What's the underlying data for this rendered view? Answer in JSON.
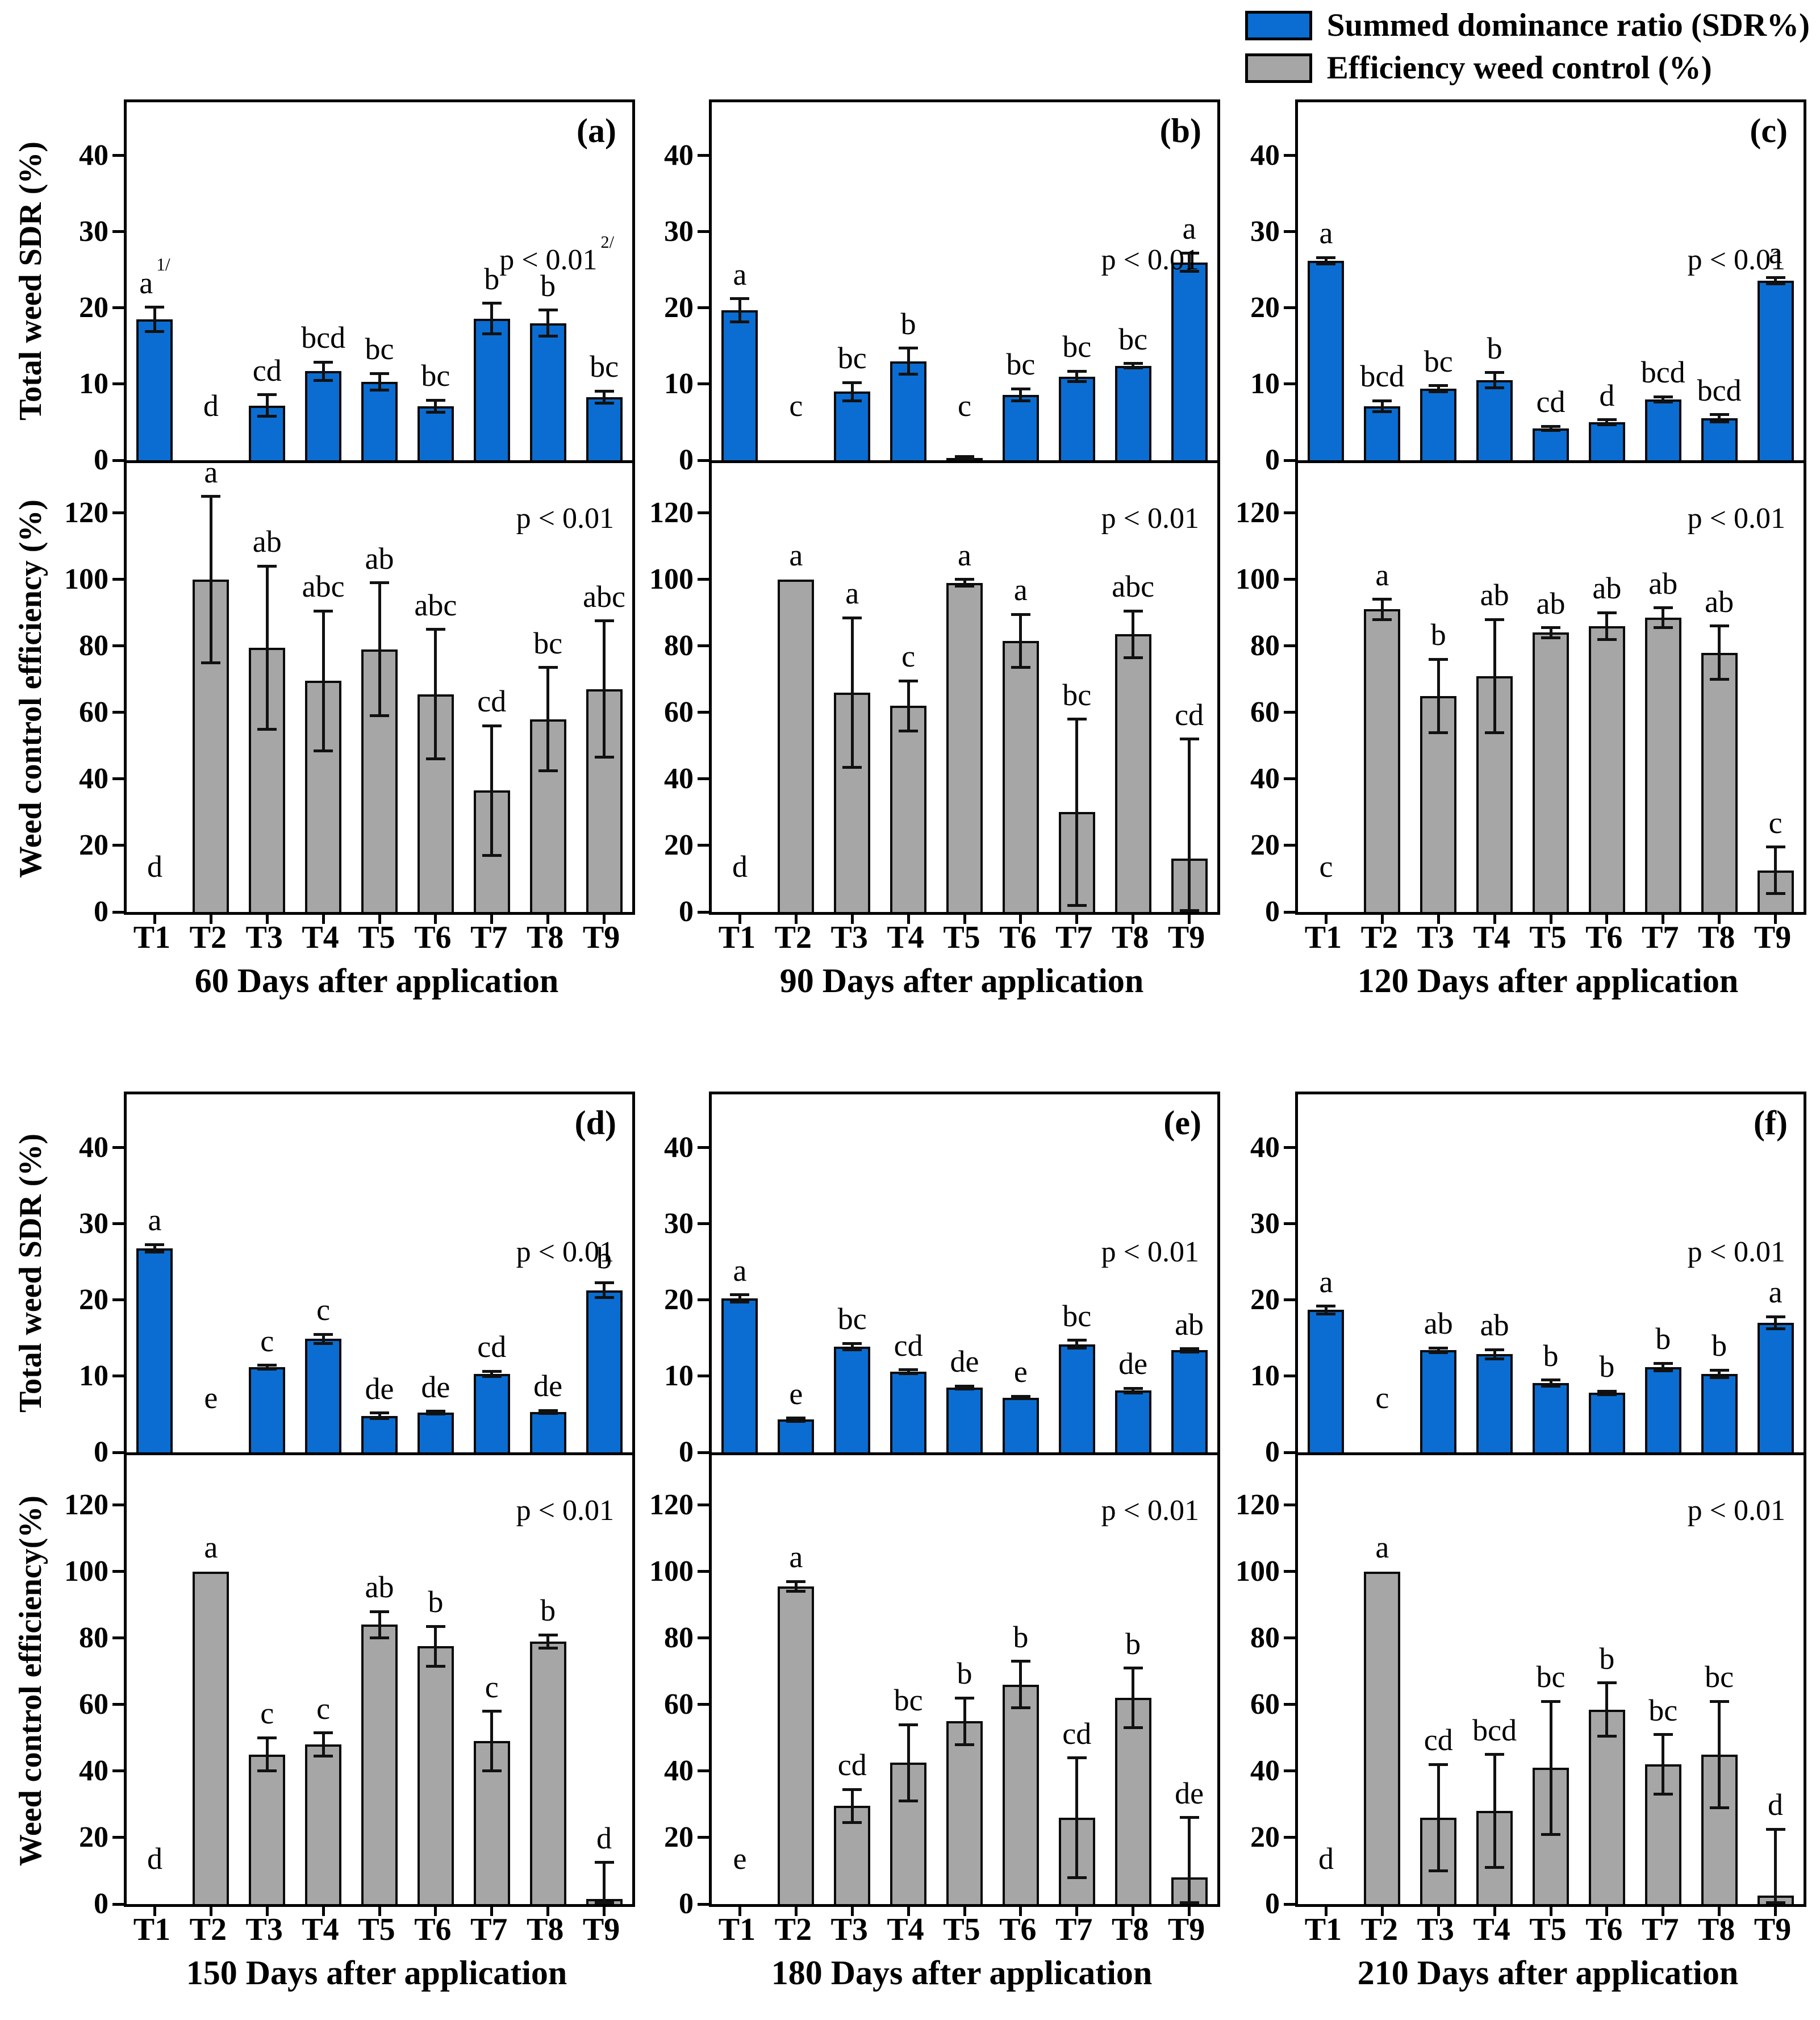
{
  "chart_data": {
    "type": "bar",
    "categories": [
      "T1",
      "T2",
      "T3",
      "T4",
      "T5",
      "T6",
      "T7",
      "T8",
      "T9"
    ],
    "legend": [
      {
        "label": "Summed dominance ratio (SDR%)",
        "color": "#0b6dd1"
      },
      {
        "label": "Efficiency weed control (%)",
        "color": "#a6a6a6"
      }
    ],
    "top_axis": {
      "ticks": [
        0,
        10,
        20,
        30,
        40
      ],
      "max": 47
    },
    "bottom_axis": {
      "ticks": [
        0,
        20,
        40,
        60,
        80,
        100,
        120
      ],
      "max": 135
    },
    "panels": [
      {
        "id": "a",
        "panel_label": "(a)",
        "x_title": "60 Days after application",
        "sdr": {
          "ylabel": "Total weed SDR (%)",
          "p": "p < 0.01",
          "p_sup": "2/",
          "values": [
            18.5,
            0,
            7.2,
            11.7,
            10.3,
            7.1,
            18.6,
            18.0,
            8.3
          ],
          "errors": [
            1.6,
            0,
            1.4,
            1.2,
            1.1,
            0.8,
            2.0,
            1.7,
            0.8
          ],
          "letters": [
            "a",
            "d",
            "cd",
            "bcd",
            "bc",
            "bc",
            "b",
            "b",
            "bc"
          ],
          "letter_sups": [
            "1/",
            "",
            "",
            "",
            "",
            "",
            "",
            "",
            ""
          ]
        },
        "wce": {
          "ylabel": "Weed control efficiency (%)",
          "p": "p < 0.01",
          "values": [
            0,
            100,
            79.5,
            69.5,
            79,
            65.5,
            36.5,
            58,
            67
          ],
          "errors": [
            0,
            25,
            24.5,
            21,
            20,
            19.5,
            19.5,
            15.5,
            20.5
          ],
          "letters": [
            "d",
            "a",
            "ab",
            "abc",
            "ab",
            "abc",
            "cd",
            "bc",
            "abc"
          ]
        }
      },
      {
        "id": "b",
        "panel_label": "(b)",
        "x_title": "90 Days after application",
        "sdr": {
          "ylabel": null,
          "p": "p < 0.01",
          "values": [
            19.7,
            0,
            9.0,
            13.0,
            0.3,
            8.6,
            11.0,
            12.4,
            26.0
          ],
          "errors": [
            1.5,
            0,
            1.2,
            1.7,
            0.2,
            0.8,
            0.7,
            0.3,
            1.2
          ],
          "letters": [
            "a",
            "c",
            "bc",
            "b",
            "c",
            "bc",
            "bc",
            "bc",
            "a"
          ]
        },
        "wce": {
          "ylabel": null,
          "p": "p < 0.01",
          "values": [
            0,
            100,
            66,
            62,
            99,
            81.5,
            30,
            83.5,
            16
          ],
          "errors": [
            0,
            0,
            22.5,
            7.5,
            1,
            8,
            28,
            7,
            36
          ],
          "letters": [
            "d",
            "a",
            "a",
            "c",
            "a",
            "a",
            "bc",
            "abc",
            "cd"
          ]
        }
      },
      {
        "id": "c",
        "panel_label": "(c)",
        "x_title": "120 Days after application",
        "sdr": {
          "ylabel": null,
          "p": "p < 0.01",
          "values": [
            26.2,
            7.1,
            9.4,
            10.5,
            4.2,
            5.0,
            8.0,
            5.5,
            23.6
          ],
          "errors": [
            0.4,
            0.7,
            0.4,
            1.0,
            0.25,
            0.3,
            0.35,
            0.5,
            0.4
          ],
          "letters": [
            "a",
            "bcd",
            "bc",
            "b",
            "cd",
            "d",
            "bcd",
            "bcd",
            "a"
          ]
        },
        "wce": {
          "ylabel": null,
          "p": "p < 0.01",
          "values": [
            0,
            91,
            65,
            71,
            84,
            86,
            88.5,
            78,
            12.5
          ],
          "errors": [
            0,
            3,
            11,
            17,
            1.5,
            4,
            3,
            8,
            7
          ],
          "letters": [
            "c",
            "a",
            "b",
            "ab",
            "ab",
            "ab",
            "ab",
            "ab",
            "c"
          ]
        }
      },
      {
        "id": "d",
        "panel_label": "(d)",
        "x_title": "150 Days after application",
        "sdr": {
          "ylabel": "Total weed SDR (%)",
          "p": "p < 0.01",
          "values": [
            26.8,
            0,
            11.2,
            14.9,
            4.8,
            5.2,
            10.3,
            5.3,
            21.3
          ],
          "errors": [
            0.5,
            0,
            0.25,
            0.6,
            0.35,
            0.2,
            0.35,
            0.2,
            1.0
          ],
          "letters": [
            "a",
            "e",
            "c",
            "c",
            "de",
            "de",
            "cd",
            "de",
            "b"
          ]
        },
        "wce": {
          "ylabel": "Weed control efficiency(%)",
          "p": "p < 0.01",
          "values": [
            0,
            100,
            45,
            48,
            84,
            77.5,
            49,
            79,
            1.5
          ],
          "errors": [
            0,
            0,
            5,
            3.5,
            4,
            6,
            9,
            2,
            11
          ],
          "letters": [
            "d",
            "a",
            "c",
            "c",
            "ab",
            "b",
            "c",
            "b",
            "d"
          ]
        }
      },
      {
        "id": "e",
        "panel_label": "(e)",
        "x_title": "180 Days after application",
        "sdr": {
          "ylabel": null,
          "p": "p < 0.01",
          "values": [
            20.2,
            4.3,
            13.9,
            10.6,
            8.5,
            7.2,
            14.2,
            8.1,
            13.4
          ],
          "errors": [
            0.5,
            0.2,
            0.4,
            0.25,
            0.2,
            0.15,
            0.5,
            0.3,
            0.2
          ],
          "letters": [
            "a",
            "e",
            "bc",
            "cd",
            "de",
            "e",
            "bc",
            "de",
            "ab"
          ]
        },
        "wce": {
          "ylabel": null,
          "p": "p < 0.01",
          "values": [
            0,
            95.5,
            29.5,
            42.5,
            55,
            66,
            26,
            62,
            8
          ],
          "errors": [
            0,
            1.5,
            5,
            11.5,
            7,
            7,
            18,
            9,
            18
          ],
          "letters": [
            "e",
            "a",
            "cd",
            "bc",
            "b",
            "b",
            "cd",
            "b",
            "de"
          ]
        }
      },
      {
        "id": "f",
        "panel_label": "(f)",
        "x_title": "210 Days after application",
        "sdr": {
          "ylabel": null,
          "p": "p < 0.01",
          "values": [
            18.7,
            0,
            13.4,
            12.9,
            9.1,
            7.8,
            11.2,
            10.3,
            17.0
          ],
          "errors": [
            0.5,
            0,
            0.3,
            0.6,
            0.4,
            0.25,
            0.5,
            0.5,
            0.8
          ],
          "letters": [
            "a",
            "c",
            "ab",
            "ab",
            "b",
            "b",
            "b",
            "b",
            "a"
          ]
        },
        "wce": {
          "ylabel": null,
          "p": "p < 0.01",
          "values": [
            0,
            100,
            26,
            28,
            41,
            58.5,
            42,
            45,
            2.5
          ],
          "errors": [
            0,
            0,
            16,
            17,
            20,
            8,
            9,
            16,
            20
          ],
          "letters": [
            "d",
            "a",
            "cd",
            "bcd",
            "bc",
            "b",
            "bc",
            "bc",
            "d"
          ]
        }
      }
    ]
  }
}
